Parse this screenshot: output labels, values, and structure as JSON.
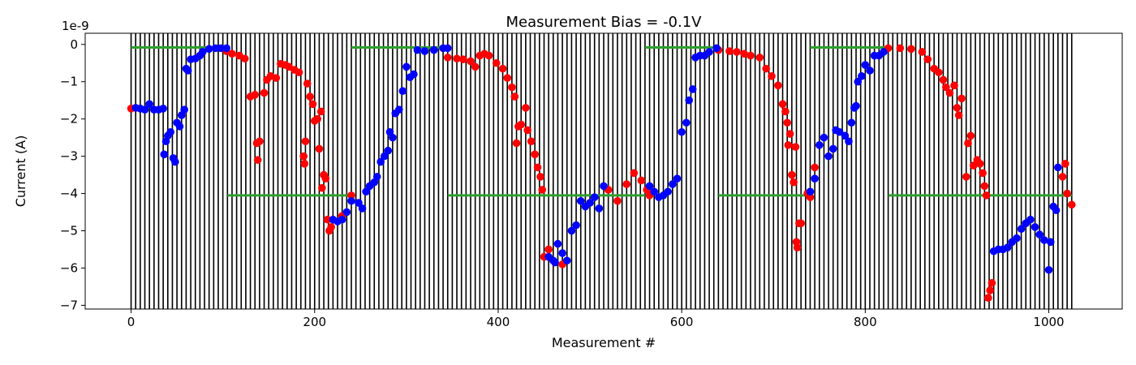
{
  "chart_data": {
    "type": "scatter",
    "title": "Measurement Bias = -0.1V",
    "xlabel": "Measurement #",
    "ylabel": "Current (A)",
    "y_scale_label": "1e-9",
    "xlim": [
      -50,
      1080
    ],
    "ylim": [
      -7.1,
      0.3
    ],
    "y_multiplier": 1e-09,
    "x_ticks": [
      0,
      200,
      400,
      600,
      800,
      1000
    ],
    "x_tick_labels": [
      "0",
      "200",
      "400",
      "600",
      "800",
      "1000"
    ],
    "y_ticks": [
      0,
      -1,
      -2,
      -3,
      -4,
      -5,
      -6,
      -7
    ],
    "y_tick_labels": [
      "0",
      "−1",
      "−2",
      "−3",
      "−4",
      "−5",
      "−6",
      "−7"
    ],
    "vertical_lines": {
      "start": 0,
      "end": 1025,
      "step": 5,
      "color": "#000000"
    },
    "guide_segments": [
      {
        "x": [
          0,
          105
        ],
        "y": -0.08
      },
      {
        "x": [
          105,
          240
        ],
        "y": -4.05
      },
      {
        "x": [
          240,
          345
        ],
        "y": -0.08
      },
      {
        "x": [
          345,
          560
        ],
        "y": -4.05
      },
      {
        "x": [
          560,
          640
        ],
        "y": -0.08
      },
      {
        "x": [
          640,
          740
        ],
        "y": -4.05
      },
      {
        "x": [
          740,
          825
        ],
        "y": -0.08
      },
      {
        "x": [
          825,
          1025
        ],
        "y": -4.05
      }
    ],
    "guide_color": "#2ca02c",
    "colors": {
      "red": "#ff0000",
      "blue": "#0000ff"
    },
    "series": [
      {
        "color_key": "red",
        "points": [
          [
            0,
            -1.72
          ],
          [
            104,
            -0.18
          ],
          [
            110,
            -0.25
          ],
          [
            118,
            -0.3
          ],
          [
            124,
            -0.38
          ],
          [
            130,
            -1.4
          ],
          [
            135,
            -1.35
          ],
          [
            137,
            -2.65
          ],
          [
            138,
            -3.1
          ],
          [
            140,
            -2.6
          ],
          [
            145,
            -1.3
          ],
          [
            148,
            -0.95
          ],
          [
            152,
            -0.85
          ],
          [
            158,
            -0.9
          ],
          [
            163,
            -0.52
          ],
          [
            168,
            -0.55
          ],
          [
            172,
            -0.6
          ],
          [
            178,
            -0.68
          ],
          [
            183,
            -0.75
          ],
          [
            188,
            -3.0
          ],
          [
            189,
            -3.2
          ],
          [
            190,
            -2.6
          ],
          [
            192,
            -1.05
          ],
          [
            195,
            -1.4
          ],
          [
            198,
            -1.6
          ],
          [
            200,
            -2.05
          ],
          [
            203,
            -2.0
          ],
          [
            205,
            -2.8
          ],
          [
            207,
            -1.8
          ],
          [
            208,
            -3.85
          ],
          [
            210,
            -3.5
          ],
          [
            212,
            -3.6
          ],
          [
            214,
            -4.7
          ],
          [
            216,
            -5.0
          ],
          [
            218,
            -4.9
          ],
          [
            230,
            -4.6
          ],
          [
            240,
            -4.05
          ],
          [
            345,
            -0.35
          ],
          [
            355,
            -0.38
          ],
          [
            362,
            -0.4
          ],
          [
            370,
            -0.45
          ],
          [
            375,
            -0.6
          ],
          [
            380,
            -0.3
          ],
          [
            385,
            -0.25
          ],
          [
            390,
            -0.3
          ],
          [
            398,
            -0.5
          ],
          [
            405,
            -0.65
          ],
          [
            410,
            -0.9
          ],
          [
            415,
            -1.15
          ],
          [
            418,
            -1.4
          ],
          [
            420,
            -2.65
          ],
          [
            422,
            -2.2
          ],
          [
            425,
            -2.15
          ],
          [
            430,
            -1.7
          ],
          [
            432,
            -2.3
          ],
          [
            436,
            -2.6
          ],
          [
            440,
            -2.95
          ],
          [
            443,
            -3.3
          ],
          [
            446,
            -3.55
          ],
          [
            448,
            -3.9
          ],
          [
            450,
            -5.7
          ],
          [
            455,
            -5.5
          ],
          [
            470,
            -5.9
          ],
          [
            520,
            -3.9
          ],
          [
            530,
            -4.2
          ],
          [
            540,
            -3.75
          ],
          [
            548,
            -3.45
          ],
          [
            556,
            -3.65
          ],
          [
            562,
            -3.9
          ],
          [
            565,
            -4.05
          ],
          [
            640,
            -0.15
          ],
          [
            652,
            -0.18
          ],
          [
            660,
            -0.2
          ],
          [
            668,
            -0.25
          ],
          [
            675,
            -0.3
          ],
          [
            685,
            -0.35
          ],
          [
            692,
            -0.65
          ],
          [
            698,
            -0.85
          ],
          [
            705,
            -1.1
          ],
          [
            710,
            -1.6
          ],
          [
            713,
            -1.8
          ],
          [
            715,
            -2.1
          ],
          [
            716,
            -2.7
          ],
          [
            718,
            -2.4
          ],
          [
            720,
            -3.5
          ],
          [
            722,
            -3.7
          ],
          [
            724,
            -2.75
          ],
          [
            725,
            -5.3
          ],
          [
            726,
            -5.45
          ],
          [
            728,
            -4.8
          ],
          [
            730,
            -4.8
          ],
          [
            737,
            -4.0
          ],
          [
            740,
            -4.1
          ],
          [
            745,
            -3.3
          ],
          [
            825,
            -0.1
          ],
          [
            838,
            -0.1
          ],
          [
            850,
            -0.12
          ],
          [
            862,
            -0.2
          ],
          [
            868,
            -0.4
          ],
          [
            875,
            -0.65
          ],
          [
            880,
            -0.75
          ],
          [
            885,
            -0.95
          ],
          [
            888,
            -1.15
          ],
          [
            892,
            -1.3
          ],
          [
            897,
            -1.1
          ],
          [
            900,
            -1.7
          ],
          [
            902,
            -1.9
          ],
          [
            905,
            -1.45
          ],
          [
            910,
            -3.55
          ],
          [
            912,
            -2.65
          ],
          [
            915,
            -2.45
          ],
          [
            918,
            -3.25
          ],
          [
            922,
            -3.1
          ],
          [
            925,
            -3.2
          ],
          [
            928,
            -3.45
          ],
          [
            930,
            -3.8
          ],
          [
            932,
            -4.05
          ],
          [
            934,
            -6.8
          ],
          [
            936,
            -6.6
          ],
          [
            938,
            -6.4
          ],
          [
            1015,
            -3.55
          ],
          [
            1018,
            -3.2
          ],
          [
            1020,
            -4.0
          ],
          [
            1025,
            -4.3
          ]
        ]
      },
      {
        "color_key": "blue",
        "points": [
          [
            5,
            -1.7
          ],
          [
            10,
            -1.72
          ],
          [
            15,
            -1.75
          ],
          [
            20,
            -1.6
          ],
          [
            25,
            -1.75
          ],
          [
            30,
            -1.75
          ],
          [
            35,
            -1.72
          ],
          [
            36,
            -2.95
          ],
          [
            38,
            -2.6
          ],
          [
            40,
            -2.45
          ],
          [
            43,
            -2.35
          ],
          [
            46,
            -3.05
          ],
          [
            48,
            -3.15
          ],
          [
            50,
            -2.1
          ],
          [
            53,
            -2.2
          ],
          [
            55,
            -1.9
          ],
          [
            58,
            -1.75
          ],
          [
            60,
            -0.65
          ],
          [
            62,
            -0.7
          ],
          [
            65,
            -0.4
          ],
          [
            70,
            -0.38
          ],
          [
            75,
            -0.3
          ],
          [
            78,
            -0.2
          ],
          [
            85,
            -0.12
          ],
          [
            92,
            -0.1
          ],
          [
            98,
            -0.1
          ],
          [
            104,
            -0.1
          ],
          [
            220,
            -4.7
          ],
          [
            225,
            -4.75
          ],
          [
            230,
            -4.7
          ],
          [
            235,
            -4.5
          ],
          [
            240,
            -4.2
          ],
          [
            248,
            -4.25
          ],
          [
            252,
            -4.4
          ],
          [
            256,
            -3.95
          ],
          [
            260,
            -3.8
          ],
          [
            265,
            -3.7
          ],
          [
            268,
            -3.55
          ],
          [
            272,
            -3.15
          ],
          [
            276,
            -3.0
          ],
          [
            280,
            -2.85
          ],
          [
            282,
            -2.35
          ],
          [
            285,
            -2.5
          ],
          [
            288,
            -1.85
          ],
          [
            292,
            -1.75
          ],
          [
            296,
            -1.25
          ],
          [
            300,
            -0.6
          ],
          [
            304,
            -0.88
          ],
          [
            308,
            -0.8
          ],
          [
            312,
            -0.15
          ],
          [
            320,
            -0.18
          ],
          [
            330,
            -0.15
          ],
          [
            340,
            -0.1
          ],
          [
            345,
            -0.1
          ],
          [
            455,
            -5.7
          ],
          [
            460,
            -5.8
          ],
          [
            462,
            -5.85
          ],
          [
            465,
            -5.35
          ],
          [
            470,
            -5.6
          ],
          [
            475,
            -5.8
          ],
          [
            480,
            -5.0
          ],
          [
            485,
            -4.85
          ],
          [
            490,
            -4.2
          ],
          [
            495,
            -4.35
          ],
          [
            500,
            -4.25
          ],
          [
            505,
            -4.1
          ],
          [
            510,
            -4.4
          ],
          [
            515,
            -3.8
          ],
          [
            565,
            -3.8
          ],
          [
            570,
            -3.95
          ],
          [
            575,
            -4.1
          ],
          [
            580,
            -4.05
          ],
          [
            585,
            -3.95
          ],
          [
            590,
            -3.75
          ],
          [
            595,
            -3.6
          ],
          [
            600,
            -2.35
          ],
          [
            605,
            -2.1
          ],
          [
            608,
            -1.5
          ],
          [
            612,
            -1.2
          ],
          [
            615,
            -0.35
          ],
          [
            620,
            -0.3
          ],
          [
            625,
            -0.3
          ],
          [
            630,
            -0.2
          ],
          [
            638,
            -0.1
          ],
          [
            740,
            -3.95
          ],
          [
            745,
            -3.6
          ],
          [
            750,
            -2.7
          ],
          [
            755,
            -2.5
          ],
          [
            760,
            -3.0
          ],
          [
            765,
            -2.8
          ],
          [
            768,
            -2.3
          ],
          [
            772,
            -2.35
          ],
          [
            778,
            -2.45
          ],
          [
            782,
            -2.6
          ],
          [
            785,
            -2.1
          ],
          [
            788,
            -1.7
          ],
          [
            790,
            -1.65
          ],
          [
            792,
            -1.0
          ],
          [
            796,
            -0.85
          ],
          [
            800,
            -0.55
          ],
          [
            805,
            -0.7
          ],
          [
            810,
            -0.3
          ],
          [
            815,
            -0.3
          ],
          [
            820,
            -0.2
          ],
          [
            940,
            -5.55
          ],
          [
            945,
            -5.5
          ],
          [
            950,
            -5.5
          ],
          [
            955,
            -5.45
          ],
          [
            960,
            -5.3
          ],
          [
            965,
            -5.2
          ],
          [
            970,
            -4.95
          ],
          [
            975,
            -4.8
          ],
          [
            980,
            -4.7
          ],
          [
            985,
            -4.9
          ],
          [
            990,
            -5.1
          ],
          [
            995,
            -5.25
          ],
          [
            1000,
            -6.05
          ],
          [
            1002,
            -5.3
          ],
          [
            1005,
            -4.35
          ],
          [
            1008,
            -4.45
          ],
          [
            1010,
            -3.3
          ]
        ]
      }
    ]
  }
}
